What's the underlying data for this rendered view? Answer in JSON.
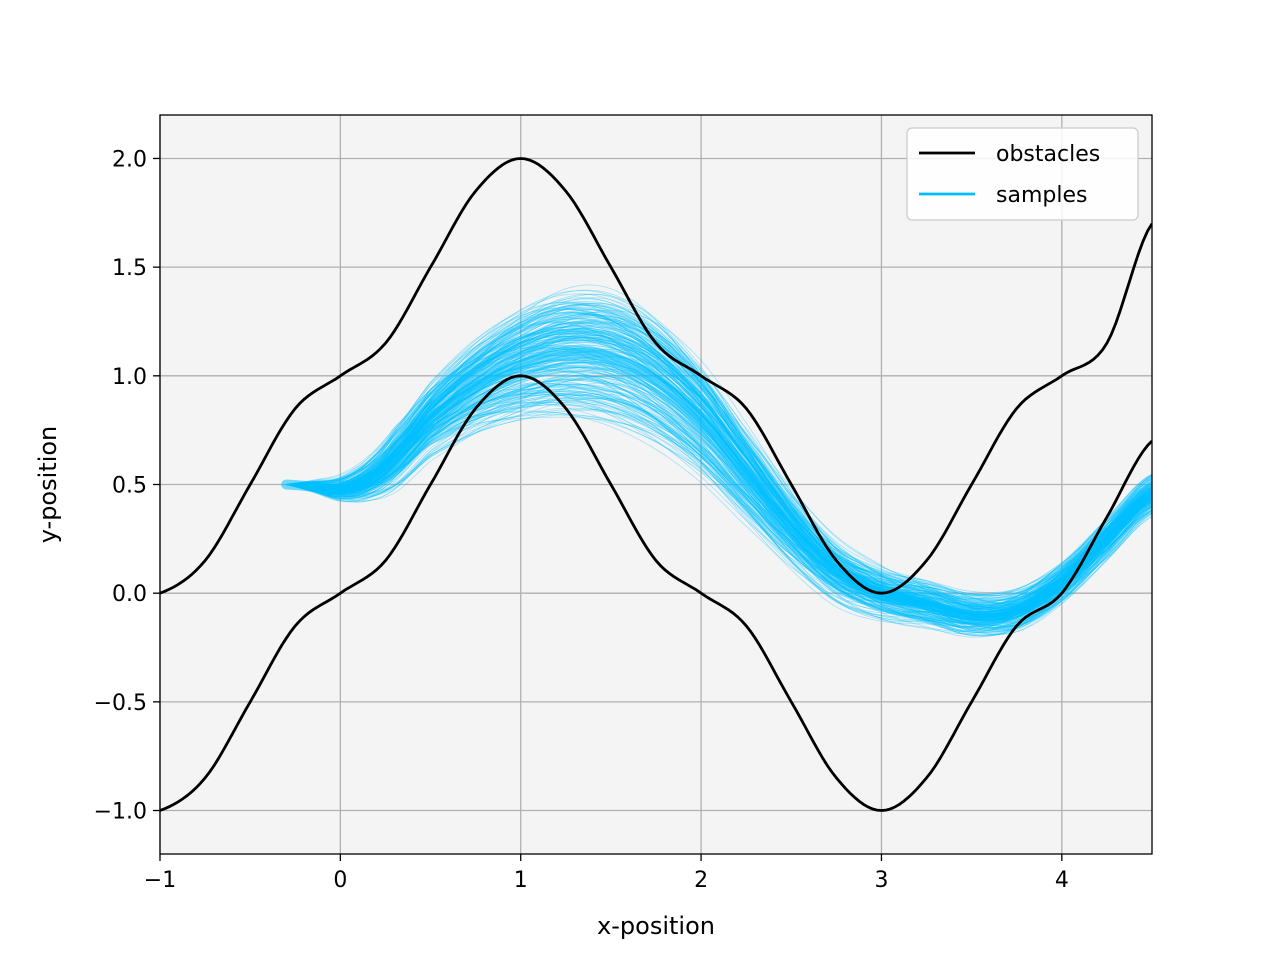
{
  "chart_data": {
    "type": "line",
    "title": "",
    "xlabel": "x-position",
    "ylabel": "y-position",
    "xlim": [
      -1,
      4.5
    ],
    "ylim": [
      -1.2,
      2.2
    ],
    "grid": true,
    "legend_position": "top-right",
    "plot_background": "#f4f4f4",
    "x_ticks": [
      -1,
      0,
      1,
      2,
      3,
      4
    ],
    "x_tick_labels": [
      "−1",
      "0",
      "1",
      "2",
      "3",
      "4"
    ],
    "y_ticks": [
      -1.0,
      -0.5,
      0.0,
      0.5,
      1.0,
      1.5,
      2.0
    ],
    "y_tick_labels": [
      "−1.0",
      "−0.5",
      "0.0",
      "0.5",
      "1.0",
      "1.5",
      "2.0"
    ],
    "series": [
      {
        "name": "obstacles",
        "color": "#000000",
        "x": [
          -1,
          -0.75,
          -0.5,
          -0.25,
          0,
          0.25,
          0.5,
          0.75,
          1,
          1.25,
          1.5,
          1.75,
          2,
          2.25,
          2.5,
          2.75,
          3,
          3.25,
          3.5,
          3.75,
          4,
          4.25,
          4.5
        ],
        "y": [
          0.0,
          0.15,
          0.5,
          0.85,
          1.0,
          1.15,
          1.5,
          1.85,
          2.0,
          1.85,
          1.5,
          1.15,
          1.0,
          0.85,
          0.5,
          0.15,
          0.0,
          0.15,
          0.5,
          0.85,
          1.0,
          1.15,
          1.7
        ]
      },
      {
        "name": "",
        "color": "#000000",
        "x": [
          -1,
          -0.75,
          -0.5,
          -0.25,
          0,
          0.25,
          0.5,
          0.75,
          1,
          1.25,
          1.5,
          1.75,
          2,
          2.25,
          2.5,
          2.75,
          3,
          3.25,
          3.5,
          3.75,
          4,
          4.25,
          4.5
        ],
        "y": [
          -1.0,
          -0.85,
          -0.5,
          -0.15,
          0.0,
          0.15,
          0.5,
          0.85,
          1.0,
          0.85,
          0.5,
          0.15,
          0.0,
          -0.15,
          -0.5,
          -0.85,
          -1.0,
          -0.85,
          -0.5,
          -0.15,
          0.0,
          0.35,
          0.7
        ]
      },
      {
        "name": "samples",
        "color": "#00bfff",
        "x": [
          -0.3,
          -0.15,
          0,
          0.15,
          0.3,
          0.5,
          0.75,
          1,
          1.25,
          1.5,
          1.75,
          2,
          2.25,
          2.5,
          2.75,
          3,
          3.25,
          3.5,
          3.75,
          4,
          4.25,
          4.5
        ],
        "y": [
          0.5,
          0.49,
          0.48,
          0.52,
          0.62,
          0.8,
          0.95,
          1.05,
          1.1,
          1.08,
          0.98,
          0.8,
          0.55,
          0.3,
          0.1,
          0.0,
          -0.05,
          -0.1,
          -0.08,
          0.05,
          0.25,
          0.45
        ]
      }
    ]
  }
}
